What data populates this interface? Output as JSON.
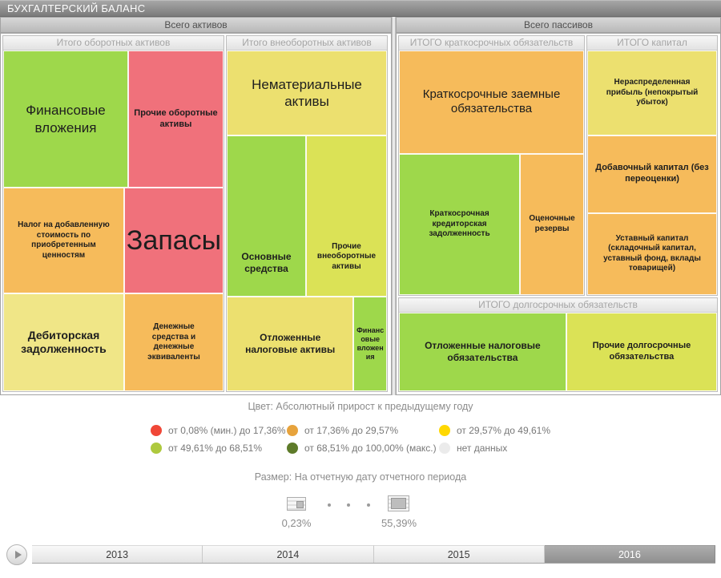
{
  "title_bar": {
    "title": "БУХГАЛТЕРСКИЙ БАЛАНС"
  },
  "chart_data": {
    "type": "treemap",
    "color_encodes": "Абсолютный прирост к предыдущему году",
    "size_encodes": "На отчетную дату отчетного периода",
    "size_range_labels": [
      "0,23%",
      "55,39%"
    ],
    "panels": [
      {
        "header": "Всего активов",
        "groups": [
          {
            "header": "Итого оборотных активов",
            "cells": [
              {
                "label": "Финансовые вложения",
                "color": "#9ed84b",
                "approx_area_pct": 13.0
              },
              {
                "label": "Прочие оборотные активы",
                "color": "#f0717b",
                "approx_area_pct": 10.1
              },
              {
                "label": "Налог на добавленную стоимость по приобретенным ценностям",
                "color": "#f6bb5b",
                "approx_area_pct": 9.8
              },
              {
                "label": "Запасы",
                "color": "#f0717b",
                "approx_area_pct": 8.2
              },
              {
                "label": "Дебиторская задолженность",
                "color": "#f0e687",
                "approx_area_pct": 9.0
              },
              {
                "label": "Денежные средства и денежные эквиваленты",
                "color": "#f6bb5b",
                "approx_area_pct": 7.5
              }
            ]
          },
          {
            "header": "Итого внеоборотных активов",
            "cells": [
              {
                "label": "Нематериальные активы",
                "color": "#ece06f",
                "approx_area_pct": 10.5
              },
              {
                "label": "Основные средства",
                "color": "#9ed84b",
                "approx_area_pct": 9.8
              },
              {
                "label": "Прочие внеоборотные активы",
                "color": "#dbe256",
                "approx_area_pct": 10.2
              },
              {
                "label": "Отложенные налоговые активы",
                "color": "#ece06f",
                "approx_area_pct": 9.4
              },
              {
                "label": "Финансовые вложения",
                "color": "#9ed84b",
                "approx_area_pct": 2.5
              }
            ]
          }
        ]
      },
      {
        "header": "Всего пассивов",
        "groups": [
          {
            "header": "ИТОГО краткосрочных обязательств",
            "cells": [
              {
                "label": "Краткосрочные заемные обязательства",
                "color": "#f6bb5b",
                "approx_area_pct": 18.7
              },
              {
                "label": "Краткосрочная кредиторская задолженность",
                "color": "#9ed84b",
                "approx_area_pct": 16.7
              },
              {
                "label": "Оценочные резервы",
                "color": "#f6bb5b",
                "approx_area_pct": 8.9
              }
            ]
          },
          {
            "header": "ИТОГО капитал",
            "cells": [
              {
                "label": "Нераспределенная прибыль (непокрытый убыток)",
                "color": "#ece06f",
                "approx_area_pct": 10.8
              },
              {
                "label": "Добавочный капитал (без переоценки)",
                "color": "#f6bb5b",
                "approx_area_pct": 9.8
              },
              {
                "label": "Уставный капитал (складочный капитал, уставный фонд, вклады товарищей)",
                "color": "#f6bb5b",
                "approx_area_pct": 10.5
              }
            ]
          },
          {
            "header": "ИТОГО долгосрочных обязательств",
            "cells": [
              {
                "label": "Отложенные налоговые обязательства",
                "color": "#9ed84b",
                "approx_area_pct": 13.0
              },
              {
                "label": "Прочие долгосрочные обязательства",
                "color": "#dbe256",
                "approx_area_pct": 11.7
              }
            ]
          }
        ]
      }
    ]
  },
  "color_legend": {
    "title": "Цвет: Абсолютный прирост к предыдущему году",
    "items": [
      {
        "label": "от 0,08% (мин.) до 17,36%",
        "color": "#f04737"
      },
      {
        "label": "от 17,36% до 29,57%",
        "color": "#e7a33c"
      },
      {
        "label": "от 29,57% до 49,61%",
        "color": "#ffd801"
      },
      {
        "label": "от 49,61% до 68,51%",
        "color": "#aec93e"
      },
      {
        "label": "от 68,51% до 100,00% (макс.)",
        "color": "#5e7b2a"
      },
      {
        "label": "нет данных",
        "color": "#ebebeb"
      }
    ]
  },
  "size_legend": {
    "title": "Размер: На отчетную дату отчетного периода",
    "min_label": "0,23%",
    "max_label": "55,39%"
  },
  "timeline": {
    "years": [
      {
        "label": "2013",
        "selected": false
      },
      {
        "label": "2014",
        "selected": false
      },
      {
        "label": "2015",
        "selected": false
      },
      {
        "label": "2016",
        "selected": true
      }
    ]
  }
}
